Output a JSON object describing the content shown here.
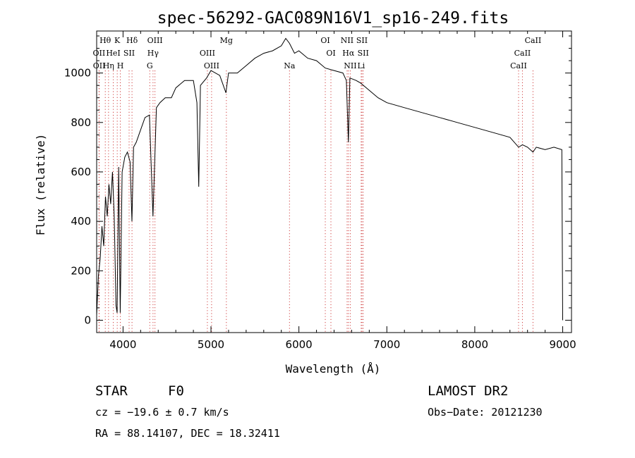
{
  "chart_data": {
    "type": "line",
    "title": "spec-56292-GAC089N16V1_sp16-249.fits",
    "xlabel": "Wavelength (Å)",
    "ylabel": "Flux (relative)",
    "xlim": [
      3700,
      9100
    ],
    "ylim": [
      -50,
      1170
    ],
    "x_ticks": [
      4000,
      5000,
      6000,
      7000,
      8000,
      9000
    ],
    "y_ticks": [
      0,
      200,
      400,
      600,
      800,
      1000
    ],
    "grid": false,
    "series": [
      {
        "x": [
          3700,
          3720,
          3740,
          3760,
          3780,
          3800,
          3820,
          3840,
          3860,
          3880,
          3900,
          3920,
          3933,
          3950,
          3968,
          3990,
          4020,
          4050,
          4080,
          4101,
          4120,
          4150,
          4200,
          4250,
          4300,
          4340,
          4380,
          4420,
          4480,
          4550,
          4600,
          4700,
          4800,
          4840,
          4861,
          4880,
          4950,
          5000,
          5100,
          5170,
          5200,
          5300,
          5400,
          5500,
          5600,
          5700,
          5800,
          5850,
          5893,
          5950,
          6000,
          6100,
          6200,
          6300,
          6400,
          6500,
          6540,
          6563,
          6580,
          6650,
          6700,
          6800,
          6900,
          7000,
          7200,
          7400,
          7600,
          7800,
          8000,
          8200,
          8400,
          8498,
          8542,
          8600,
          8662,
          8700,
          8800,
          8900,
          8990,
          9000
        ],
        "y": [
          20,
          180,
          250,
          380,
          300,
          500,
          420,
          550,
          470,
          600,
          420,
          60,
          30,
          620,
          30,
          600,
          660,
          680,
          640,
          400,
          700,
          720,
          770,
          820,
          830,
          420,
          860,
          880,
          900,
          900,
          940,
          970,
          970,
          880,
          540,
          950,
          980,
          1010,
          990,
          920,
          1000,
          1000,
          1030,
          1060,
          1080,
          1090,
          1110,
          1140,
          1120,
          1080,
          1090,
          1060,
          1050,
          1020,
          1010,
          1000,
          970,
          720,
          980,
          970,
          960,
          930,
          900,
          880,
          860,
          840,
          820,
          800,
          780,
          760,
          740,
          700,
          710,
          700,
          680,
          700,
          690,
          700,
          690,
          0
        ]
      }
    ],
    "line_markers": {
      "top_row": [
        {
          "label": "Hθ",
          "x": 3798
        },
        {
          "label": "K",
          "x": 3934
        },
        {
          "label": "Hδ",
          "x": 4102
        },
        {
          "label": "OIII",
          "x": 4363
        },
        {
          "label": "Mg",
          "x": 5175
        },
        {
          "label": "OI",
          "x": 6300
        },
        {
          "label": "NII",
          "x": 6548
        },
        {
          "label": "SII",
          "x": 6717
        },
        {
          "label": "CaII",
          "x": 8662
        }
      ],
      "mid_row": [
        {
          "label": "OII",
          "x": 3727
        },
        {
          "label": "HeI",
          "x": 3889
        },
        {
          "label": "SII",
          "x": 4069
        },
        {
          "label": "Hγ",
          "x": 4341
        },
        {
          "label": "OIII",
          "x": 4959
        },
        {
          "label": "OI",
          "x": 6364
        },
        {
          "label": "Hα",
          "x": 6563
        },
        {
          "label": "SII",
          "x": 6731
        },
        {
          "label": "CaII",
          "x": 8542
        }
      ],
      "bottom_row": [
        {
          "label": "OII",
          "x": 3729
        },
        {
          "label": "Hη",
          "x": 3835
        },
        {
          "label": "H",
          "x": 3969
        },
        {
          "label": "G",
          "x": 4304
        },
        {
          "label": "OIII",
          "x": 5007
        },
        {
          "label": "Na",
          "x": 5893
        },
        {
          "label": "NII",
          "x": 6584
        },
        {
          "label": "Li",
          "x": 6708
        },
        {
          "label": "CaII",
          "x": 8498
        }
      ]
    }
  },
  "info": {
    "class": "STAR",
    "subclass": "F0",
    "survey": "LAMOST DR2",
    "redshift": "cz = −19.6 ± 0.7 km/s",
    "obs_date": "Obs−Date: 20121230",
    "coords": "RA =  88.14107, DEC =  18.32411"
  }
}
